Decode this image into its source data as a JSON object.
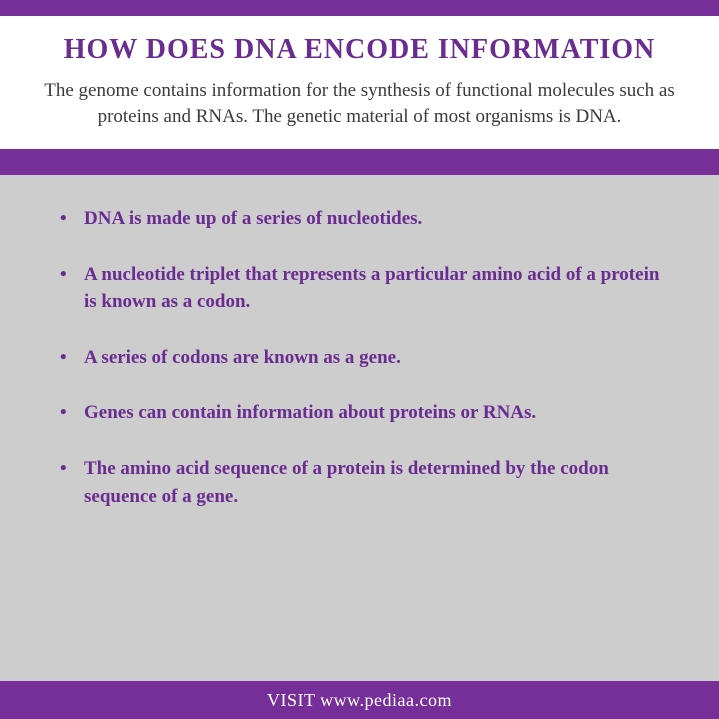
{
  "colors": {
    "purple_dark": "#6a2c91",
    "purple_bar": "#762f98",
    "text_dark": "#3a3a3a",
    "header_bg": "#ffffff",
    "content_bg": "#cdcdcd",
    "footer_text": "#ffffff"
  },
  "layout": {
    "top_bar_height": 16,
    "divider_bar_height": 26,
    "footer_bar_height": 38
  },
  "header": {
    "title": "HOW DOES DNA ENCODE INFORMATION",
    "title_fontsize": 28,
    "title_color": "#6a2c91",
    "subtitle": "The genome contains information for the synthesis of functional molecules such as proteins and RNAs. The genetic material of most organisms is DNA.",
    "subtitle_fontsize": 19,
    "subtitle_color": "#3a3a3a"
  },
  "bullets": {
    "fontsize": 19,
    "color": "#6a2c91",
    "items": [
      "DNA is made up of a series of nucleotides.",
      "A nucleotide triplet that represents a particular amino acid of a protein is known as a codon.",
      "A series of codons are known as a gene.",
      "Genes can contain information about proteins or RNAs.",
      "The amino acid sequence of a protein is determined by the codon sequence of a gene."
    ]
  },
  "footer": {
    "text": "VISIT www.pediaa.com",
    "fontsize": 18,
    "color": "#ffffff"
  }
}
